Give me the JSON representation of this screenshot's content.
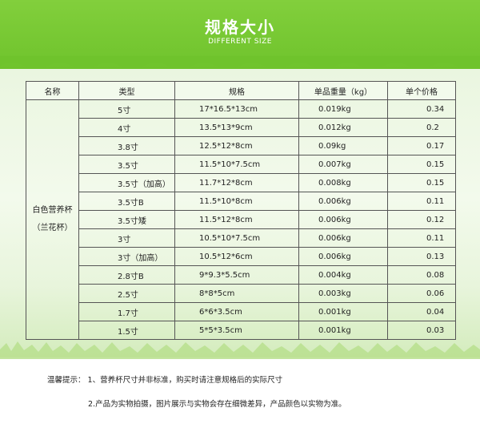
{
  "header": {
    "title": "规格大小",
    "subtitle": "DIFFERENT SIZE"
  },
  "table": {
    "headers": [
      "名称",
      "类型",
      "规格",
      "单品重量（kg）",
      "单个价格"
    ],
    "product_name_line1": "白色营养杯",
    "product_name_line2": "（兰花杯）",
    "rows": [
      {
        "type": "5寸",
        "size": "17*16.5*13cm",
        "weight": "0.019kg",
        "price": "0.34"
      },
      {
        "type": "4寸",
        "size": "13.5*13*9cm",
        "weight": "0.012kg",
        "price": "0.2"
      },
      {
        "type": "3.8寸",
        "size": "12.5*12*8cm",
        "weight": "0.09kg",
        "price": "0.17"
      },
      {
        "type": "3.5寸",
        "size": "11.5*10*7.5cm",
        "weight": "0.007kg",
        "price": "0.15"
      },
      {
        "type": "3.5寸（加高）",
        "size": "11.7*12*8cm",
        "weight": "0.008kg",
        "price": "0.15"
      },
      {
        "type": "3.5寸B",
        "size": "11.5*10*8cm",
        "weight": "0.006kg",
        "price": "0.11"
      },
      {
        "type": "3.5寸矮",
        "size": "11.5*12*8cm",
        "weight": "0.006kg",
        "price": "0.12"
      },
      {
        "type": "3寸",
        "size": "10.5*10*7.5cm",
        "weight": "0.006kg",
        "price": "0.11"
      },
      {
        "type": "3寸（加高）",
        "size": "10.5*12*6cm",
        "weight": "0.006kg",
        "price": "0.13"
      },
      {
        "type": "2.8寸B",
        "size": "9*9.3*5.5cm",
        "weight": "0.004kg",
        "price": "0.08"
      },
      {
        "type": "2.5寸",
        "size": "8*8*5cm",
        "weight": "0.003kg",
        "price": "0.06"
      },
      {
        "type": "1.7寸",
        "size": "6*6*3.5cm",
        "weight": "0.001kg",
        "price": "0.04"
      },
      {
        "type": "1.5寸",
        "size": "5*5*3.5cm",
        "weight": "0.001kg",
        "price": "0.03"
      }
    ]
  },
  "notes": {
    "line1": "温馨提示： 1、营养杯尺寸并非标准，购买时请注意规格后的实际尺寸",
    "line2": "2.产品为实物拍摄，图片展示与实物会存在细微差异，产品颜色以实物为准。"
  },
  "colors": {
    "banner_green": "#76c832",
    "background_tint": "#eaf6e0"
  }
}
